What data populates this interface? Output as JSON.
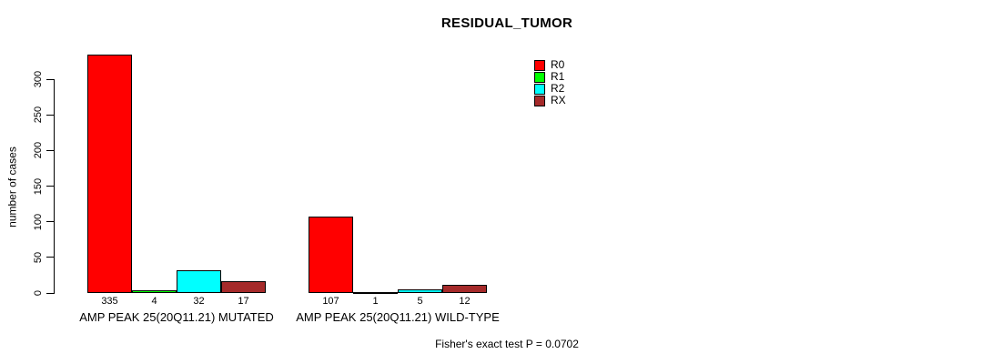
{
  "chart_data": {
    "type": "bar",
    "title": "RESIDUAL_TUMOR",
    "xlabel": "",
    "ylabel": "number of cases",
    "ylim": [
      0,
      300
    ],
    "yticks": [
      0,
      50,
      100,
      150,
      200,
      250,
      300
    ],
    "grid": false,
    "legend_position": "top-right",
    "categories": [
      "AMP PEAK 25(20Q11.21) MUTATED",
      "AMP PEAK 25(20Q11.21) WILD-TYPE"
    ],
    "series": [
      {
        "name": "R0",
        "color": "#FF0000",
        "values": [
          335,
          107
        ]
      },
      {
        "name": "R1",
        "color": "#00FF00",
        "values": [
          4,
          1
        ]
      },
      {
        "name": "R2",
        "color": "#00FFFF",
        "values": [
          32,
          5
        ]
      },
      {
        "name": "RX",
        "color": "#A52A2A",
        "values": [
          17,
          12
        ]
      }
    ],
    "bar_value_labels_shown": true,
    "annotation": "Fisher's exact test P = 0.0702"
  }
}
